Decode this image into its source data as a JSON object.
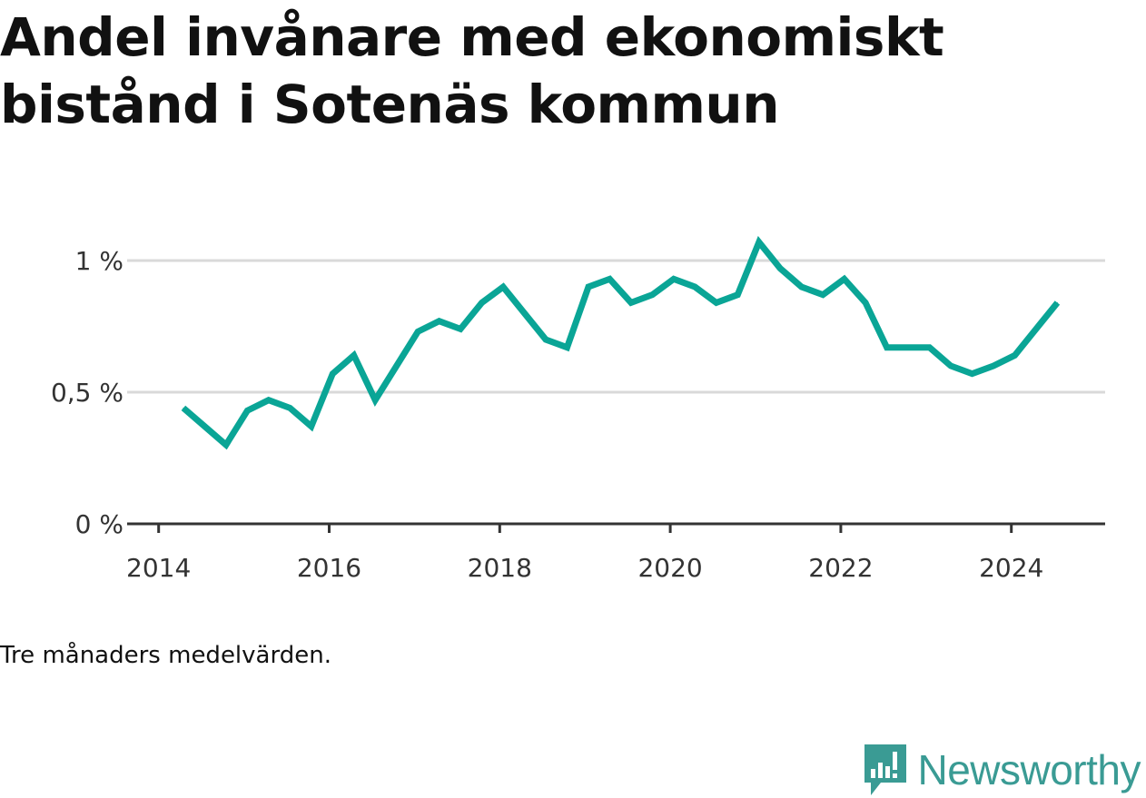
{
  "title": "Andel invånare med ekonomiskt bistånd i Sotenäs kommun",
  "note": "Tre månaders medelvärden.",
  "logo": {
    "text": "Newsworthy",
    "color": "#3a9b94",
    "icon": "newsworthy-logo-icon"
  },
  "colors": {
    "line": "#0aa596",
    "grid": "#d9d9d9",
    "axis": "#333333"
  },
  "chart_data": {
    "type": "line",
    "title": "Andel invånare med ekonomiskt bistånd i Sotenäs kommun",
    "xlabel": "",
    "ylabel": "",
    "x_ticks": [
      "2014",
      "2016",
      "2018",
      "2020",
      "2022",
      "2024"
    ],
    "y_ticks": [
      "0 %",
      "0,5 %",
      "1 %"
    ],
    "xlim": [
      2013.95,
      2025.1
    ],
    "ylim": [
      0,
      1
    ],
    "grid": true,
    "series": [
      {
        "values": [
          [
            2014.29,
            0.44
          ],
          [
            2014.54,
            0.37
          ],
          [
            2014.79,
            0.3
          ],
          [
            2015.04,
            0.43
          ],
          [
            2015.29,
            0.47
          ],
          [
            2015.54,
            0.44
          ],
          [
            2015.79,
            0.37
          ],
          [
            2016.04,
            0.57
          ],
          [
            2016.29,
            0.64
          ],
          [
            2016.54,
            0.47
          ],
          [
            2016.79,
            0.6
          ],
          [
            2017.04,
            0.73
          ],
          [
            2017.29,
            0.77
          ],
          [
            2017.54,
            0.74
          ],
          [
            2017.79,
            0.84
          ],
          [
            2018.04,
            0.9
          ],
          [
            2018.29,
            0.8
          ],
          [
            2018.54,
            0.7
          ],
          [
            2018.79,
            0.67
          ],
          [
            2019.04,
            0.9
          ],
          [
            2019.29,
            0.93
          ],
          [
            2019.54,
            0.84
          ],
          [
            2019.79,
            0.87
          ],
          [
            2020.04,
            0.93
          ],
          [
            2020.29,
            0.9
          ],
          [
            2020.54,
            0.84
          ],
          [
            2020.79,
            0.87
          ],
          [
            2021.04,
            1.07
          ],
          [
            2021.29,
            0.97
          ],
          [
            2021.54,
            0.9
          ],
          [
            2021.79,
            0.87
          ],
          [
            2022.04,
            0.93
          ],
          [
            2022.29,
            0.84
          ],
          [
            2022.54,
            0.67
          ],
          [
            2022.79,
            0.67
          ],
          [
            2023.04,
            0.67
          ],
          [
            2023.29,
            0.6
          ],
          [
            2023.54,
            0.57
          ],
          [
            2023.79,
            0.6
          ],
          [
            2024.04,
            0.64
          ],
          [
            2024.29,
            0.74
          ],
          [
            2024.54,
            0.84
          ]
        ]
      }
    ]
  }
}
